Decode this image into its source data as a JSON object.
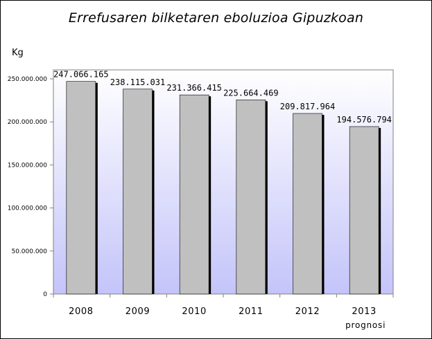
{
  "chart_data": {
    "type": "bar",
    "title": "Errefusaren bilketaren eboluzioa Gipuzkoan",
    "ylabel": "Kg",
    "xlabel": "",
    "categories": [
      "2008",
      "2009",
      "2010",
      "2011",
      "2012",
      "2013"
    ],
    "category_notes": [
      "",
      "",
      "",
      "",
      "",
      "prognosi"
    ],
    "values": [
      247066165,
      238115031,
      231366415,
      225664469,
      209817964,
      194576794
    ],
    "data_labels": [
      "247.066.165",
      "238.115.031",
      "231.366.415",
      "225.664.469",
      "209.817.964",
      "194.576.794"
    ],
    "ylim": [
      0,
      250000000
    ],
    "yticks": [
      0,
      50000000,
      100000000,
      150000000,
      200000000,
      250000000
    ],
    "ytick_labels": [
      "0",
      "50.000.000",
      "100.000.000",
      "150.000.000",
      "200.000.000",
      "250.000.000"
    ],
    "grid": false,
    "legend": "none",
    "colors": {
      "bar_fill": "#c0c0c0",
      "bar_stroke": "#000000",
      "bar_shadow": "#000000",
      "plot_bg_top": "#ffffff",
      "plot_bg_bottom": "#c4c4fa",
      "axis": "#808080"
    }
  }
}
